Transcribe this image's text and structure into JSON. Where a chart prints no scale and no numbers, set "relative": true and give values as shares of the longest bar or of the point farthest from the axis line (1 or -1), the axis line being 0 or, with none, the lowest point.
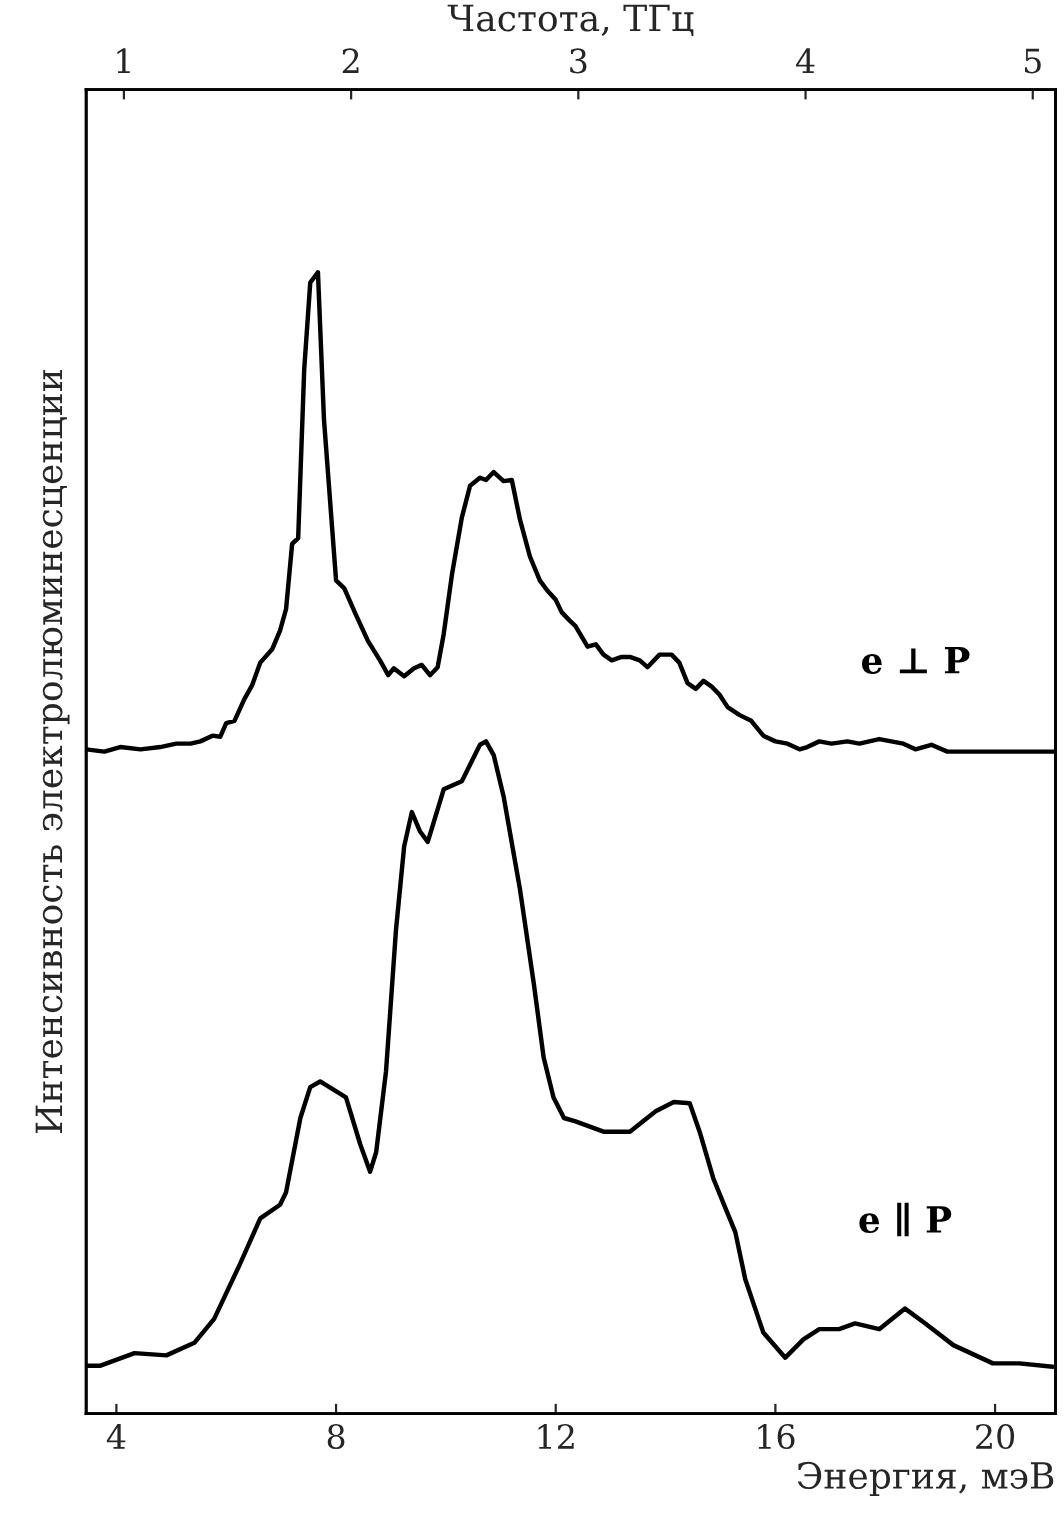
{
  "chart_data": {
    "type": "line",
    "relative": true,
    "xlabel": "Энергия, мэВ",
    "ylabel": "Интенсивность электролюминесценции",
    "x2label": "Частота, ТГц",
    "xlim": [
      3.45,
      21.1
    ],
    "xticks": [
      4,
      8,
      12,
      16,
      20
    ],
    "x2lim": [
      0.834,
      5.1
    ],
    "x2ticks": [
      1,
      2,
      3,
      4,
      5
    ],
    "grid": false,
    "legend": false,
    "line_style": "solid",
    "marker": "none",
    "series": [
      {
        "name": "e ⊥ P",
        "color": "#000000",
        "x": [
          3.45,
          3.78,
          4.07,
          4.44,
          4.8,
          5.09,
          5.35,
          5.53,
          5.75,
          5.89,
          6.0,
          6.15,
          6.33,
          6.47,
          6.62,
          6.84,
          6.98,
          7.09,
          7.2,
          7.31,
          7.42,
          7.53,
          7.67,
          7.78,
          8.0,
          8.15,
          8.36,
          8.58,
          8.8,
          8.95,
          9.05,
          9.24,
          9.42,
          9.56,
          9.71,
          9.85,
          9.96,
          10.11,
          10.29,
          10.44,
          10.62,
          10.73,
          10.87,
          11.05,
          11.2,
          11.35,
          11.53,
          11.71,
          11.85,
          12.0,
          12.11,
          12.25,
          12.36,
          12.58,
          12.73,
          12.87,
          13.02,
          13.2,
          13.35,
          13.53,
          13.67,
          13.89,
          14.11,
          14.25,
          14.4,
          14.55,
          14.69,
          14.84,
          14.98,
          15.13,
          15.35,
          15.56,
          15.78,
          16.0,
          16.22,
          16.44,
          16.58,
          16.8,
          17.02,
          17.31,
          17.53,
          17.89,
          18.11,
          18.33,
          18.55,
          18.84,
          19.13,
          19.71,
          20.44,
          21.09
        ],
        "values": [
          0.582,
          0.58,
          0.584,
          0.582,
          0.584,
          0.587,
          0.587,
          0.589,
          0.594,
          0.593,
          0.605,
          0.607,
          0.626,
          0.638,
          0.658,
          0.67,
          0.686,
          0.705,
          0.762,
          0.767,
          0.915,
          0.991,
          1.0,
          0.871,
          0.73,
          0.723,
          0.7,
          0.677,
          0.66,
          0.647,
          0.653,
          0.646,
          0.653,
          0.656,
          0.647,
          0.654,
          0.683,
          0.735,
          0.785,
          0.813,
          0.82,
          0.818,
          0.825,
          0.817,
          0.818,
          0.783,
          0.751,
          0.73,
          0.721,
          0.713,
          0.702,
          0.695,
          0.69,
          0.672,
          0.674,
          0.665,
          0.66,
          0.663,
          0.663,
          0.66,
          0.654,
          0.665,
          0.665,
          0.658,
          0.64,
          0.635,
          0.642,
          0.637,
          0.63,
          0.619,
          0.612,
          0.607,
          0.594,
          0.589,
          0.587,
          0.582,
          0.584,
          0.589,
          0.587,
          0.589,
          0.587,
          0.591,
          0.589,
          0.587,
          0.582,
          0.586,
          0.58,
          0.58,
          0.58,
          0.58
        ]
      },
      {
        "name": "e ∥ P",
        "color": "#000000",
        "x": [
          3.45,
          3.71,
          4.33,
          4.91,
          5.42,
          5.78,
          6.25,
          6.62,
          6.98,
          7.09,
          7.35,
          7.53,
          7.71,
          8.18,
          8.44,
          8.62,
          8.73,
          8.91,
          9.09,
          9.24,
          9.38,
          9.53,
          9.67,
          9.96,
          10.29,
          10.62,
          10.73,
          10.87,
          11.05,
          11.35,
          11.6,
          11.78,
          11.96,
          12.15,
          12.36,
          12.87,
          13.35,
          13.82,
          14.15,
          14.44,
          14.62,
          14.87,
          15.09,
          15.27,
          15.45,
          15.78,
          16.18,
          16.51,
          16.8,
          17.16,
          17.45,
          17.89,
          18.36,
          18.73,
          19.24,
          19.96,
          20.44,
          21.05
        ],
        "values": [
          0.042,
          0.042,
          0.053,
          0.051,
          0.062,
          0.083,
          0.131,
          0.171,
          0.183,
          0.194,
          0.259,
          0.286,
          0.291,
          0.277,
          0.236,
          0.212,
          0.229,
          0.3,
          0.423,
          0.497,
          0.527,
          0.51,
          0.501,
          0.547,
          0.554,
          0.586,
          0.589,
          0.577,
          0.541,
          0.459,
          0.377,
          0.312,
          0.277,
          0.259,
          0.256,
          0.247,
          0.247,
          0.265,
          0.273,
          0.272,
          0.247,
          0.206,
          0.18,
          0.159,
          0.118,
          0.071,
          0.049,
          0.065,
          0.074,
          0.074,
          0.079,
          0.074,
          0.092,
          0.079,
          0.06,
          0.044,
          0.044,
          0.041
        ]
      }
    ]
  }
}
